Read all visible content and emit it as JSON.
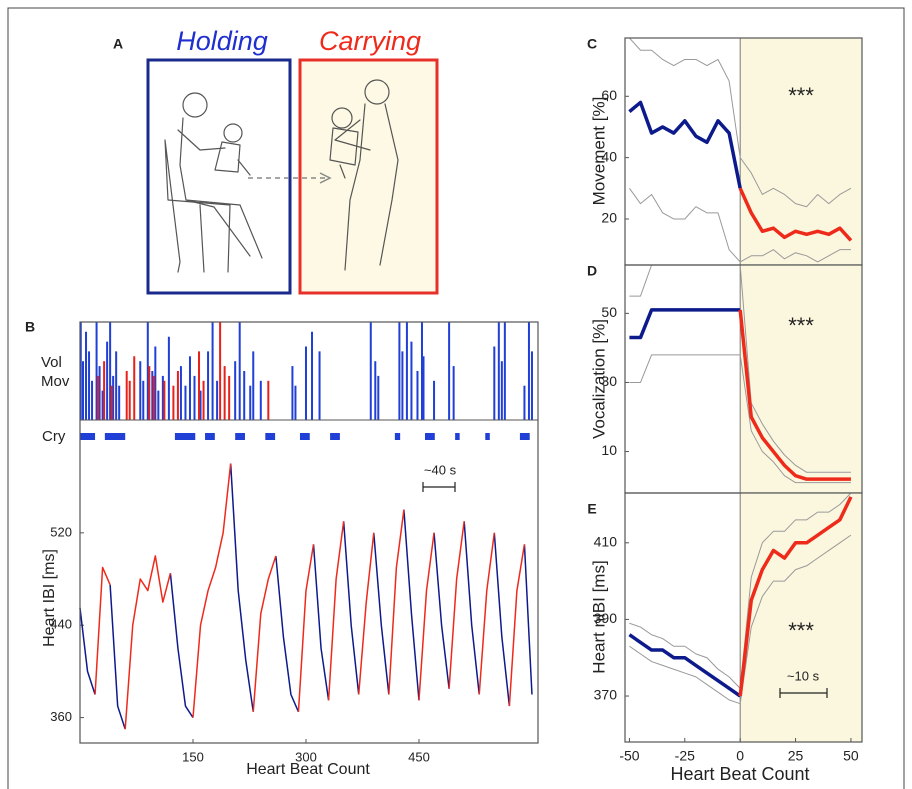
{
  "illustration": {
    "panel_label": "A",
    "left_title": "Holding",
    "right_title": "Carrying"
  },
  "chart_data": [
    {
      "type": "line",
      "panel_label": "B",
      "ylabel": "Heart IBI [ms]",
      "xlabel": "Heart Beat Count",
      "scale_bar": "~40 s",
      "x": [
        0,
        10,
        20,
        30,
        40,
        50,
        60,
        70,
        80,
        90,
        100,
        110,
        120,
        130,
        140,
        150,
        160,
        170,
        180,
        190,
        200,
        210,
        220,
        230,
        240,
        250,
        260,
        270,
        280,
        290,
        300,
        310,
        320,
        330,
        340,
        350,
        360,
        370,
        380,
        390,
        400,
        410,
        420,
        430,
        440,
        450,
        460,
        470,
        480,
        490,
        500,
        510,
        520,
        530,
        540,
        550,
        560,
        570,
        580,
        590,
        600
      ],
      "series": [
        {
          "color": "#0d1a8c",
          "linewidth": 1.5,
          "values": [
            455,
            400,
            380,
            null,
            475,
            370,
            350,
            null,
            null,
            null,
            null,
            null,
            485,
            420,
            370,
            360,
            null,
            null,
            null,
            null,
            580,
            470,
            410,
            365,
            null,
            null,
            500,
            430,
            380,
            365,
            null,
            510,
            420,
            375,
            null,
            530,
            440,
            380,
            null,
            520,
            440,
            380,
            null,
            540,
            450,
            375,
            null,
            520,
            440,
            385,
            null,
            530,
            440,
            380,
            null,
            520,
            430,
            370,
            null,
            510,
            380
          ]
        },
        {
          "color": "#ee2a1b",
          "linewidth": 1.5,
          "values": [
            null,
            null,
            380,
            490,
            475,
            null,
            350,
            440,
            480,
            470,
            500,
            460,
            485,
            null,
            null,
            360,
            440,
            470,
            490,
            520,
            580,
            null,
            null,
            365,
            450,
            480,
            500,
            null,
            null,
            365,
            470,
            510,
            null,
            375,
            480,
            530,
            null,
            380,
            460,
            520,
            null,
            380,
            490,
            540,
            null,
            375,
            470,
            520,
            null,
            385,
            480,
            530,
            null,
            380,
            470,
            520,
            null,
            370,
            470,
            510,
            null
          ]
        }
      ],
      "xlim": [
        0,
        608
      ],
      "ylim": [
        338,
        590
      ],
      "xticks": [
        150,
        300,
        450
      ],
      "yticks": [
        360,
        440,
        520
      ],
      "activity": {
        "labels": [
          "Vol",
          "Mov"
        ],
        "ylim": [
          0,
          100
        ],
        "series": [
          {
            "color": "#1f3fd6",
            "x": [
              1,
              4,
              8,
              12,
              16,
              22,
              26,
              30,
              36,
              40,
              44,
              48,
              52,
              80,
              84,
              90,
              96,
              100,
              104,
              110,
              118,
              134,
              140,
              146,
              152,
              160,
              170,
              176,
              182,
              206,
              212,
              218,
              226,
              230,
              240,
              282,
              286,
              300,
              308,
              318,
              386,
              392,
              396,
              424,
              428,
              434,
              440,
              448,
              454,
              456,
              470,
              490,
              496,
              550,
              556,
              560,
              564,
              590,
              596,
              600
            ],
            "values": [
              100,
              60,
              90,
              70,
              40,
              100,
              55,
              30,
              80,
              100,
              45,
              70,
              35,
              60,
              40,
              100,
              50,
              75,
              30,
              45,
              85,
              55,
              35,
              65,
              45,
              30,
              70,
              100,
              40,
              60,
              100,
              50,
              35,
              70,
              40,
              55,
              35,
              75,
              90,
              70,
              100,
              60,
              45,
              100,
              70,
              100,
              80,
              50,
              100,
              65,
              40,
              100,
              55,
              75,
              100,
              60,
              100,
              35,
              100,
              70
            ]
          },
          {
            "color": "#e8201a",
            "x": [
              24,
              32,
              42,
              62,
              66,
              72,
              92,
              98,
              112,
              124,
              130,
              158,
              164,
              186,
              192,
              198,
              250
            ],
            "values": [
              45,
              60,
              35,
              50,
              40,
              65,
              55,
              45,
              40,
              35,
              50,
              70,
              40,
              100,
              55,
              45,
              40
            ]
          }
        ]
      },
      "cry": {
        "label": "Cry",
        "color": "#1f3fd6",
        "starts": [
          0,
          33,
          126,
          166,
          206,
          246,
          292,
          332,
          418,
          458,
          498,
          538,
          584
        ],
        "ends": [
          20,
          60,
          153,
          179,
          219,
          259,
          305,
          345,
          425,
          471,
          504,
          544,
          597
        ]
      }
    },
    {
      "type": "line",
      "panel_label": "C",
      "ylabel": "Movement [%]",
      "significance": "***",
      "x": [
        -50,
        -45,
        -40,
        -35,
        -30,
        -25,
        -20,
        -15,
        -10,
        -5,
        0,
        5,
        10,
        15,
        20,
        25,
        30,
        35,
        40,
        45,
        50
      ],
      "series": [
        {
          "color": "#999999",
          "linewidth": 1,
          "values": [
            79,
            75,
            75,
            72,
            70,
            72,
            72,
            70,
            72,
            65,
            40,
            35,
            28,
            30,
            28,
            25,
            24,
            28,
            25,
            28,
            30
          ]
        },
        {
          "color": "#999999",
          "linewidth": 1,
          "values": [
            30,
            25,
            28,
            22,
            20,
            20,
            24,
            22,
            22,
            10,
            6,
            8,
            8,
            10,
            7,
            9,
            8,
            6,
            8,
            10,
            10
          ]
        },
        {
          "color": "#0d1a8c",
          "linewidth": 3.5,
          "values": [
            55,
            58,
            48,
            50,
            48,
            52,
            47,
            45,
            52,
            48,
            30,
            null,
            null,
            null,
            null,
            null,
            null,
            null,
            null,
            null,
            null
          ]
        },
        {
          "color": "#ee2a1b",
          "linewidth": 3.5,
          "values": [
            null,
            null,
            null,
            null,
            null,
            null,
            null,
            null,
            null,
            null,
            30,
            22,
            16,
            17,
            14,
            16,
            15,
            16,
            15,
            17,
            13
          ]
        }
      ],
      "xlim": [
        -52,
        55
      ],
      "ylim": [
        5,
        79
      ],
      "yticks": [
        20,
        40,
        60
      ]
    },
    {
      "type": "line",
      "panel_label": "D",
      "ylabel": "Vocalization [%]",
      "significance": "***",
      "x": [
        -50,
        -45,
        -40,
        -35,
        -30,
        -25,
        -20,
        -15,
        -10,
        -5,
        0,
        5,
        10,
        15,
        20,
        25,
        30,
        35,
        40,
        45,
        50
      ],
      "series": [
        {
          "color": "#999999",
          "linewidth": 1,
          "values": [
            55,
            55,
            64,
            64,
            64,
            64,
            64,
            64,
            64,
            64,
            64,
            24,
            18,
            13,
            9,
            6,
            4,
            4,
            4,
            4,
            4
          ]
        },
        {
          "color": "#999999",
          "linewidth": 1,
          "values": [
            30,
            30,
            38,
            38,
            38,
            38,
            38,
            38,
            38,
            38,
            38,
            16,
            10,
            7,
            3,
            1,
            1,
            1,
            1,
            1,
            1
          ]
        },
        {
          "color": "#0d1a8c",
          "linewidth": 3.5,
          "values": [
            43,
            43,
            51,
            51,
            51,
            51,
            51,
            51,
            51,
            51,
            51,
            null,
            null,
            null,
            null,
            null,
            null,
            null,
            null,
            null,
            null
          ]
        },
        {
          "color": "#ee2a1b",
          "linewidth": 3.5,
          "values": [
            null,
            null,
            null,
            null,
            null,
            null,
            null,
            null,
            null,
            null,
            51,
            20,
            14,
            10,
            6,
            3,
            2,
            2,
            2,
            2,
            2
          ]
        }
      ],
      "xlim": [
        -52,
        55
      ],
      "ylim": [
        -2,
        64
      ],
      "yticks": [
        10,
        30,
        50
      ]
    },
    {
      "type": "line",
      "panel_label": "E",
      "ylabel": "Heart nIBI [ms]",
      "xlabel": "Heart Beat Count",
      "significance": "***",
      "scale_bar": "~10 s",
      "x": [
        -50,
        -45,
        -40,
        -35,
        -30,
        -25,
        -20,
        -15,
        -10,
        -5,
        0,
        5,
        10,
        15,
        20,
        25,
        30,
        35,
        40,
        45,
        50
      ],
      "series": [
        {
          "color": "#999999",
          "linewidth": 1,
          "values": [
            389,
            388,
            386,
            385,
            383,
            383,
            381,
            380,
            377,
            375,
            372,
            401,
            410,
            413,
            413,
            416,
            416,
            418,
            418,
            420,
            423
          ]
        },
        {
          "color": "#999999",
          "linewidth": 1,
          "values": [
            383,
            381,
            379,
            378,
            377,
            376,
            375,
            373,
            371,
            369,
            368,
            388,
            396,
            400,
            400,
            403,
            404,
            406,
            408,
            410,
            412
          ]
        },
        {
          "color": "#0d1a8c",
          "linewidth": 3.5,
          "values": [
            386,
            384,
            382,
            382,
            380,
            380,
            378,
            376,
            374,
            372,
            370,
            null,
            null,
            null,
            null,
            null,
            null,
            null,
            null,
            null,
            null
          ]
        },
        {
          "color": "#ee2a1b",
          "linewidth": 3.5,
          "values": [
            null,
            null,
            null,
            null,
            null,
            null,
            null,
            null,
            null,
            null,
            370,
            395,
            403,
            408,
            406,
            410,
            410,
            412,
            414,
            416,
            422
          ]
        }
      ],
      "xlim": [
        -52,
        55
      ],
      "ylim": [
        358,
        423
      ],
      "xticks": [
        -50,
        -25,
        0,
        25,
        50
      ],
      "yticks": [
        370,
        390,
        410
      ]
    }
  ]
}
